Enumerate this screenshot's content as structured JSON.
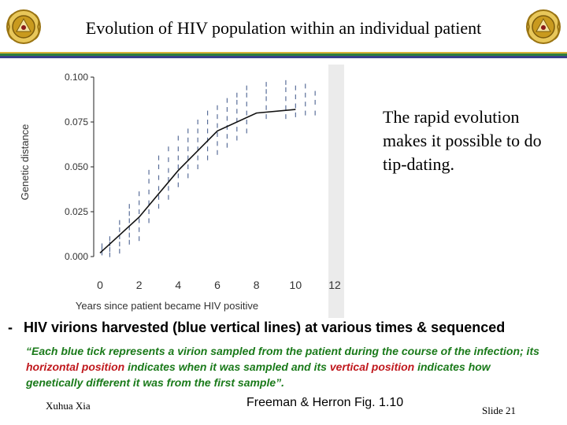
{
  "slide": {
    "title": "Evolution of HIV population within an individual patient",
    "side_note": "The rapid evolution makes it possible to do tip-dating.",
    "bullet_marker": "-",
    "bullet": "HIV virions harvested (blue vertical lines) at various times & sequenced",
    "quote": {
      "part1": "“Each blue tick represents a virion sampled from the patient during the course of the infection; its ",
      "highlight1": "horizontal position",
      "part2": " indicates when it was sampled and its ",
      "highlight2": "vertical position",
      "part3": " indicates how genetically different it was from the first sample”."
    },
    "author": "Xuhua Xia",
    "citation": "Freeman & Herron Fig. 1.10",
    "slide_number": "Slide 21"
  },
  "colors": {
    "title_rule_top": "#d8b23a",
    "title_rule_mid": "#2f7f3f",
    "title_rule_bottom": "#3a3f8c",
    "quote": "#1a7a1a",
    "highlight": "#c0181d",
    "logo_gold": "#c99a1e"
  },
  "icons": {
    "logo": "university-crest-icon"
  },
  "chart_data": {
    "type": "scatter",
    "title": "",
    "xlabel": "Years since patient became HIV positive",
    "ylabel": "Genetic distance",
    "xlim": [
      0,
      12
    ],
    "ylim": [
      0,
      0.1
    ],
    "x_ticks": [
      "0",
      "2",
      "4",
      "6",
      "8",
      "10",
      "12"
    ],
    "y_ticks": [
      "0.000",
      "0.025",
      "0.050",
      "0.075",
      "0.100"
    ],
    "samples": [
      {
        "x": 0.1,
        "y": [
          0.002,
          0.004,
          0.006
        ]
      },
      {
        "x": 0.5,
        "y": [
          0.001,
          0.004,
          0.007,
          0.01
        ]
      },
      {
        "x": 1.0,
        "y": [
          0.003,
          0.007,
          0.011,
          0.015,
          0.019
        ]
      },
      {
        "x": 1.5,
        "y": [
          0.008,
          0.012,
          0.016,
          0.02,
          0.024,
          0.028
        ]
      },
      {
        "x": 2.0,
        "y": [
          0.01,
          0.015,
          0.02,
          0.025,
          0.03,
          0.035
        ]
      },
      {
        "x": 2.5,
        "y": [
          0.02,
          0.025,
          0.03,
          0.036,
          0.042,
          0.047
        ]
      },
      {
        "x": 3.0,
        "y": [
          0.028,
          0.033,
          0.038,
          0.044,
          0.05,
          0.055
        ]
      },
      {
        "x": 3.5,
        "y": [
          0.033,
          0.038,
          0.043,
          0.048,
          0.054,
          0.06
        ]
      },
      {
        "x": 4.0,
        "y": [
          0.04,
          0.045,
          0.05,
          0.055,
          0.06,
          0.066
        ]
      },
      {
        "x": 4.5,
        "y": [
          0.045,
          0.05,
          0.055,
          0.06,
          0.065,
          0.07
        ]
      },
      {
        "x": 5.0,
        "y": [
          0.05,
          0.055,
          0.06,
          0.065,
          0.07,
          0.075
        ]
      },
      {
        "x": 5.5,
        "y": [
          0.055,
          0.06,
          0.065,
          0.07,
          0.075,
          0.08
        ]
      },
      {
        "x": 6.0,
        "y": [
          0.058,
          0.063,
          0.068,
          0.073,
          0.078,
          0.083
        ]
      },
      {
        "x": 6.5,
        "y": [
          0.062,
          0.067,
          0.072,
          0.077,
          0.082,
          0.087
        ]
      },
      {
        "x": 7.0,
        "y": [
          0.066,
          0.071,
          0.076,
          0.081,
          0.086,
          0.09
        ]
      },
      {
        "x": 7.5,
        "y": [
          0.07,
          0.075,
          0.08,
          0.085,
          0.09,
          0.094
        ]
      },
      {
        "x": 8.5,
        "y": [
          0.078,
          0.083,
          0.088,
          0.092,
          0.096
        ]
      },
      {
        "x": 9.5,
        "y": [
          0.078,
          0.083,
          0.088,
          0.093,
          0.097
        ]
      },
      {
        "x": 10.0,
        "y": [
          0.079,
          0.084,
          0.089,
          0.094
        ]
      },
      {
        "x": 10.5,
        "y": [
          0.08,
          0.085,
          0.09,
          0.095
        ]
      },
      {
        "x": 11.0,
        "y": [
          0.08,
          0.086,
          0.091
        ]
      }
    ],
    "trend": {
      "x": [
        0,
        2,
        4,
        6,
        8,
        10
      ],
      "y": [
        0.002,
        0.022,
        0.048,
        0.07,
        0.08,
        0.082
      ]
    },
    "grid": false
  }
}
